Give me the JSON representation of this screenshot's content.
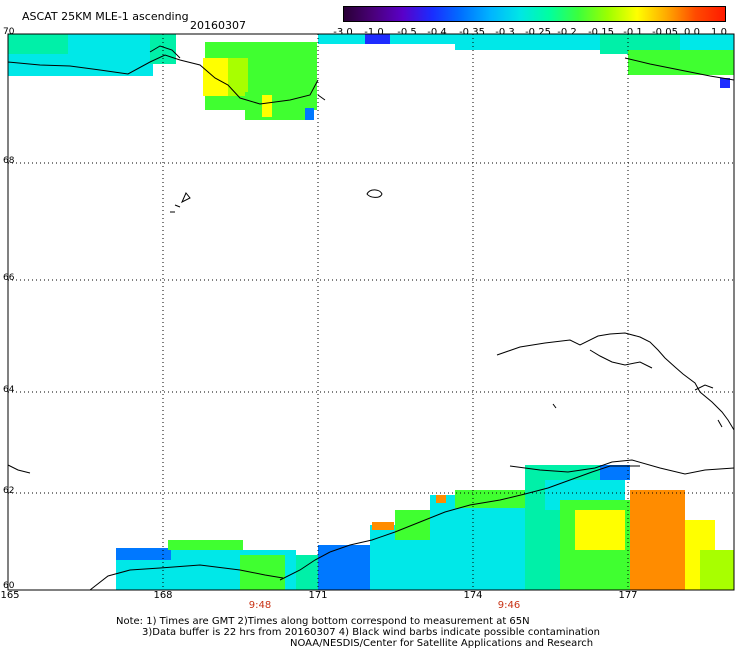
{
  "header": {
    "title": "ASCAT 25KM MLE-1 ascending",
    "date": "20160307"
  },
  "colorbar": {
    "labels": [
      "-3.0",
      "-1.0",
      "-0.5",
      "-0.4",
      "-0.35",
      "-0.3",
      "-0.25",
      "-0.2",
      "-0.15",
      "-0.1",
      "-0.05",
      "0.0",
      "1.0"
    ],
    "colors": [
      "#2a0036",
      "#4a007a",
      "#5a00c8",
      "#1a2cff",
      "#0070ff",
      "#00b4ff",
      "#00e6e6",
      "#00ffa0",
      "#3cff3c",
      "#9cff00",
      "#ffff00",
      "#ffaa00",
      "#ff4a00",
      "#ff1a00"
    ]
  },
  "axes": {
    "lat_labels": [
      "70",
      "68",
      "66",
      "64",
      "62",
      "60"
    ],
    "lon_labels": [
      "165",
      "168",
      "171",
      "174",
      "177"
    ],
    "time_labels": [
      "9:48",
      "9:46"
    ]
  },
  "notes": {
    "line1": "Note: 1) Times are GMT 2)Times along bottom correspond to measurement at 65N",
    "line2": "3)Data buffer is 22 hrs from 20160307 4) Black wind barbs indicate possible contamination",
    "line3": "NOAA/NESDIS/Center for Satellite Applications and Research"
  },
  "palette": {
    "cyan": "#00e8e8",
    "aqua_green": "#00f0a8",
    "green": "#40ff30",
    "lime": "#a8ff00",
    "yellow": "#ffff00",
    "orange": "#ff8c00",
    "blue": "#0078ff",
    "deep_blue": "#1e2cff"
  }
}
